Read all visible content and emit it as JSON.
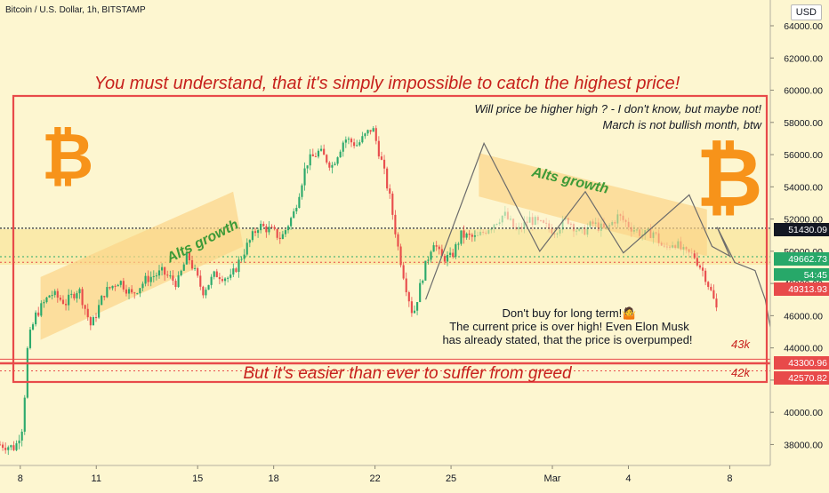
{
  "header": {
    "symbol": "Bitcoin / U.S. Dollar, 1h, BITSTAMP",
    "currency": "USD"
  },
  "annotations": {
    "headline": "You must understand, that it's simply impossible to catch the highest price!",
    "question_line1": "Will price be higher high ? - I don't know, but maybe not!",
    "question_line2": "March is not bullish month, btw",
    "warning_line1": "Don't buy for long term!🤷",
    "warning_line2": "The current price is over high! Even Elon Musk",
    "warning_line3": "has already stated, that the price is overpumped!",
    "bottom": "But it's easier than ever to suffer from greed",
    "alts_left": "Alts growth",
    "alts_right": "Alts growth",
    "level_43k": "43k",
    "level_42k": "42k"
  },
  "price_labels": {
    "p1": "51430.09",
    "p2": "49662.73",
    "timer": "54:45",
    "p3": "49313.93",
    "p4": "43300.96",
    "p5": "42570.82"
  },
  "colors": {
    "background": "#fdf6d0",
    "up_candle": "#27a869",
    "down_candle": "#e84a4a",
    "annotation_red": "#c7211d",
    "alts_green": "#3d9a37",
    "channel": "#fbd488",
    "bitcoin_orange": "#f7931a"
  },
  "chart_data": {
    "type": "candlestick",
    "y_ticks": [
      38000,
      40000,
      42000,
      44000,
      46000,
      48000,
      50000,
      52000,
      54000,
      56000,
      58000,
      60000,
      62000,
      64000
    ],
    "y_tick_labels": [
      "38000.00",
      "40000.00",
      "42000.00",
      "44000.00",
      "46000.00",
      "48000.00",
      "50000.00",
      "52000.00",
      "54000.00",
      "56000.00",
      "58000.00",
      "60000.00",
      "62000.00",
      "64000.00"
    ],
    "ylim": [
      36700,
      65600
    ],
    "x_ticks": [
      "8",
      "11",
      "15",
      "18",
      "22",
      "25",
      "Mar",
      "4",
      "8"
    ],
    "x_tick_days": [
      8,
      11,
      15,
      18,
      22,
      25,
      29,
      32,
      36
    ],
    "xlim": [
      7.2,
      37.6
    ],
    "price_path": [
      [
        7.2,
        38000
      ],
      [
        7.8,
        37800
      ],
      [
        8.1,
        39200
      ],
      [
        8.3,
        44300
      ],
      [
        8.6,
        46000
      ],
      [
        9.2,
        47400
      ],
      [
        9.8,
        46800
      ],
      [
        10.3,
        47700
      ],
      [
        10.8,
        45300
      ],
      [
        11.3,
        47400
      ],
      [
        11.9,
        48200
      ],
      [
        12.4,
        47300
      ],
      [
        13.0,
        48300
      ],
      [
        13.6,
        48700
      ],
      [
        14.2,
        48000
      ],
      [
        14.6,
        49800
      ],
      [
        15.2,
        47500
      ],
      [
        15.7,
        48600
      ],
      [
        16.3,
        48300
      ],
      [
        16.9,
        50200
      ],
      [
        17.4,
        51600
      ],
      [
        17.9,
        51300
      ],
      [
        18.3,
        50800
      ],
      [
        18.8,
        52400
      ],
      [
        19.3,
        55500
      ],
      [
        19.8,
        56200
      ],
      [
        20.3,
        55300
      ],
      [
        20.8,
        57000
      ],
      [
        21.3,
        56600
      ],
      [
        21.9,
        57700
      ],
      [
        22.3,
        55300
      ],
      [
        22.6,
        53200
      ],
      [
        22.9,
        50300
      ],
      [
        23.2,
        48000
      ],
      [
        23.5,
        46000
      ],
      [
        23.9,
        48600
      ],
      [
        24.3,
        50700
      ],
      [
        24.6,
        49600
      ],
      [
        25.0,
        49600
      ],
      [
        25.4,
        51000
      ],
      [
        26.0,
        50800
      ],
      [
        26.5,
        51500
      ],
      [
        27.1,
        52300
      ],
      [
        27.6,
        51200
      ],
      [
        28.1,
        52000
      ],
      [
        28.6,
        51600
      ],
      [
        29.1,
        51300
      ],
      [
        29.6,
        52000
      ],
      [
        30.1,
        51100
      ],
      [
        30.6,
        51700
      ],
      [
        31.1,
        51300
      ],
      [
        31.6,
        52200
      ],
      [
        32.1,
        51500
      ],
      [
        32.6,
        51000
      ],
      [
        33.0,
        51200
      ],
      [
        33.4,
        50100
      ],
      [
        33.8,
        50600
      ],
      [
        34.2,
        49900
      ],
      [
        34.6,
        49700
      ],
      [
        35.0,
        48600
      ],
      [
        35.3,
        47300
      ],
      [
        35.5,
        46300
      ]
    ],
    "channel_left": {
      "lower": [
        [
          8.8,
          44500
        ],
        [
          16.8,
          50300
        ]
      ],
      "upper": [
        [
          8.8,
          48400
        ],
        [
          16.4,
          53700
        ]
      ]
    },
    "channel_right": {
      "upper": [
        [
          26.1,
          56100
        ],
        [
          35.1,
          52600
        ]
      ],
      "lower": [
        [
          26.1,
          53400
        ],
        [
          35.1,
          49700
        ]
      ]
    },
    "projection_path": [
      [
        24.0,
        47000
      ],
      [
        26.3,
        56700
      ],
      [
        28.5,
        50000
      ],
      [
        30.3,
        53700
      ],
      [
        31.8,
        49900
      ],
      [
        34.4,
        53500
      ],
      [
        35.3,
        50300
      ],
      [
        36.0,
        49700
      ],
      [
        35.5,
        51500
      ],
      [
        36.2,
        49300
      ],
      [
        37.0,
        48800
      ],
      [
        37.4,
        47000
      ],
      [
        37.8,
        43600
      ]
    ],
    "horizontal_levels": [
      {
        "price": 51430.09,
        "style": "black-dotted"
      },
      {
        "price": 49662.73,
        "style": "green-dotted"
      },
      {
        "price": 49313.93,
        "style": "red-dotted"
      },
      {
        "price": 43300.96,
        "style": "red-solid"
      },
      {
        "price": 42570.82,
        "style": "red-dotted"
      }
    ]
  }
}
